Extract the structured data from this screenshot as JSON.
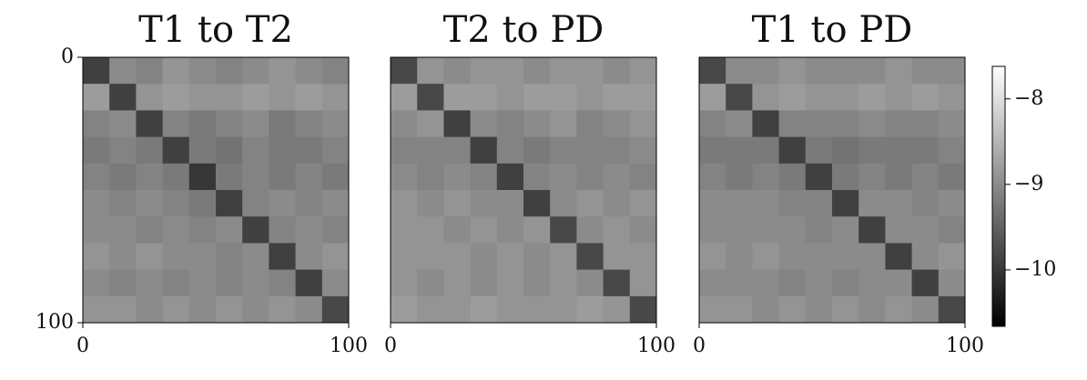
{
  "chart_data": [
    {
      "type": "heatmap",
      "title": "T1 to T2",
      "xlim": [
        0,
        100
      ],
      "ylim": [
        100,
        0
      ],
      "xticks": [
        0,
        100
      ],
      "yticks": [
        0,
        100
      ],
      "matrix": [
        [
          -9.9,
          -9.0,
          -9.1,
          -8.9,
          -9.0,
          -9.1,
          -9.0,
          -8.9,
          -9.0,
          -9.1
        ],
        [
          -8.8,
          -9.9,
          -8.9,
          -8.8,
          -8.9,
          -8.9,
          -8.8,
          -8.9,
          -8.8,
          -8.9
        ],
        [
          -9.1,
          -9.0,
          -9.9,
          -9.1,
          -9.2,
          -9.1,
          -9.0,
          -9.2,
          -9.1,
          -9.0
        ],
        [
          -9.2,
          -9.1,
          -9.2,
          -9.9,
          -9.2,
          -9.3,
          -9.1,
          -9.2,
          -9.2,
          -9.1
        ],
        [
          -9.1,
          -9.2,
          -9.1,
          -9.2,
          -10.0,
          -9.2,
          -9.1,
          -9.2,
          -9.1,
          -9.2
        ],
        [
          -9.0,
          -9.1,
          -9.0,
          -9.1,
          -9.2,
          -9.9,
          -9.1,
          -9.0,
          -9.1,
          -9.0
        ],
        [
          -9.0,
          -9.0,
          -9.1,
          -9.0,
          -9.1,
          -9.0,
          -9.9,
          -9.1,
          -9.0,
          -9.1
        ],
        [
          -8.9,
          -9.0,
          -8.9,
          -9.0,
          -9.0,
          -9.1,
          -9.0,
          -9.9,
          -9.0,
          -8.9
        ],
        [
          -9.0,
          -9.1,
          -9.0,
          -9.1,
          -9.0,
          -9.1,
          -9.0,
          -9.1,
          -9.9,
          -9.0
        ],
        [
          -8.9,
          -8.9,
          -9.0,
          -8.9,
          -9.0,
          -8.9,
          -9.0,
          -8.9,
          -9.0,
          -9.8
        ]
      ]
    },
    {
      "type": "heatmap",
      "title": "T2 to PD",
      "xlim": [
        0,
        100
      ],
      "ylim": [
        100,
        0
      ],
      "xticks": [
        0,
        100
      ],
      "matrix": [
        [
          -9.8,
          -8.9,
          -9.0,
          -8.9,
          -8.9,
          -9.0,
          -8.9,
          -8.9,
          -9.0,
          -8.9
        ],
        [
          -8.8,
          -9.8,
          -8.8,
          -8.8,
          -8.9,
          -8.8,
          -8.8,
          -8.9,
          -8.8,
          -8.8
        ],
        [
          -9.0,
          -8.9,
          -9.9,
          -9.0,
          -9.1,
          -9.0,
          -8.9,
          -9.1,
          -9.0,
          -8.9
        ],
        [
          -9.1,
          -9.1,
          -9.1,
          -9.9,
          -9.1,
          -9.2,
          -9.1,
          -9.1,
          -9.1,
          -9.0
        ],
        [
          -9.0,
          -9.1,
          -9.0,
          -9.1,
          -9.9,
          -9.1,
          -9.0,
          -9.1,
          -9.0,
          -9.1
        ],
        [
          -8.9,
          -9.0,
          -8.9,
          -9.0,
          -9.0,
          -9.9,
          -9.0,
          -8.9,
          -9.0,
          -8.9
        ],
        [
          -8.9,
          -8.9,
          -9.0,
          -8.9,
          -9.0,
          -8.9,
          -9.8,
          -9.0,
          -8.9,
          -9.0
        ],
        [
          -8.9,
          -8.9,
          -8.9,
          -9.0,
          -8.9,
          -9.0,
          -8.9,
          -9.8,
          -8.9,
          -8.9
        ],
        [
          -8.9,
          -9.0,
          -8.9,
          -9.0,
          -8.9,
          -9.0,
          -8.9,
          -9.0,
          -9.8,
          -8.9
        ],
        [
          -8.8,
          -8.9,
          -8.9,
          -8.8,
          -8.9,
          -8.9,
          -8.9,
          -8.8,
          -8.9,
          -9.8
        ]
      ]
    },
    {
      "type": "heatmap",
      "title": "T1 to PD",
      "xlim": [
        0,
        100
      ],
      "ylim": [
        100,
        0
      ],
      "xticks": [
        0,
        100
      ],
      "matrix": [
        [
          -9.8,
          -9.0,
          -9.0,
          -8.9,
          -9.0,
          -9.0,
          -9.0,
          -8.9,
          -9.0,
          -9.0
        ],
        [
          -8.8,
          -9.8,
          -8.9,
          -8.8,
          -8.9,
          -8.9,
          -8.8,
          -8.9,
          -8.8,
          -8.9
        ],
        [
          -9.1,
          -9.0,
          -9.9,
          -9.1,
          -9.1,
          -9.1,
          -9.0,
          -9.1,
          -9.1,
          -9.0
        ],
        [
          -9.2,
          -9.2,
          -9.2,
          -9.9,
          -9.2,
          -9.3,
          -9.2,
          -9.2,
          -9.2,
          -9.1
        ],
        [
          -9.1,
          -9.2,
          -9.1,
          -9.2,
          -9.9,
          -9.2,
          -9.1,
          -9.2,
          -9.1,
          -9.2
        ],
        [
          -9.0,
          -9.0,
          -9.0,
          -9.1,
          -9.1,
          -9.9,
          -9.0,
          -9.0,
          -9.1,
          -9.0
        ],
        [
          -9.0,
          -9.0,
          -9.0,
          -9.0,
          -9.1,
          -9.0,
          -9.9,
          -9.0,
          -9.0,
          -9.1
        ],
        [
          -8.9,
          -9.0,
          -8.9,
          -9.0,
          -9.0,
          -9.0,
          -9.0,
          -9.9,
          -9.0,
          -8.9
        ],
        [
          -9.0,
          -9.0,
          -9.0,
          -9.1,
          -9.0,
          -9.1,
          -9.0,
          -9.0,
          -9.9,
          -9.0
        ],
        [
          -8.9,
          -8.9,
          -9.0,
          -8.9,
          -9.0,
          -8.9,
          -9.0,
          -8.9,
          -9.0,
          -9.8
        ]
      ]
    }
  ],
  "colorbar": {
    "clim": [
      -10.66,
      -7.62
    ],
    "ticks": [
      {
        "value": -8,
        "label": "−8"
      },
      {
        "value": -9,
        "label": "−9"
      },
      {
        "value": -10,
        "label": "−10"
      }
    ]
  }
}
